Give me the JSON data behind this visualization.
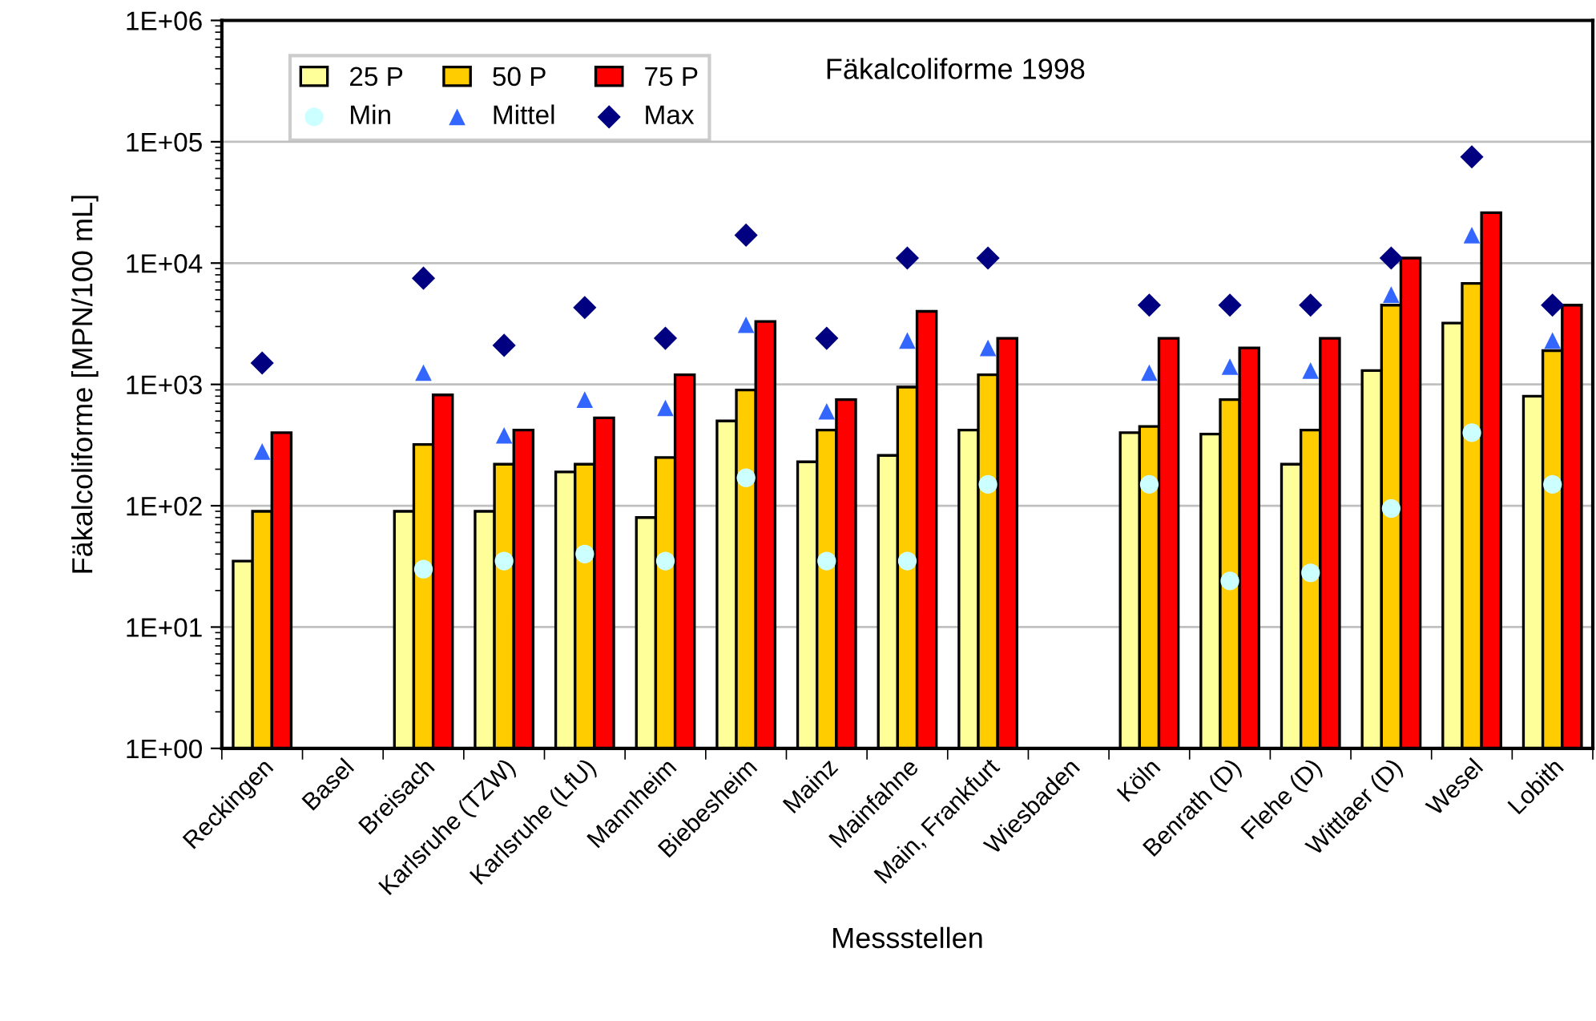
{
  "chart_data": {
    "type": "bar",
    "title": "Fäkalcoliforme 1998",
    "xlabel": "Messstellen",
    "ylabel": "Fäkalcoliforme [MPN/100 mL]",
    "categories": [
      "Reckingen",
      "Basel",
      "Breisach",
      "Karlsruhe (TZW)",
      "Karlsruhe (LfU)",
      "Mannheim",
      "Biebesheim",
      "Mainz",
      "Mainfahne",
      "Main, Frankfurt",
      "Wiesbaden",
      "Köln",
      "Benrath (D)",
      "Flehe (D)",
      "Wittlaer (D)",
      "Wesel",
      "Lobith"
    ],
    "series": [
      {
        "name": "25 P",
        "color": "#ffff99",
        "values": [
          35,
          null,
          90,
          90,
          190,
          80,
          500,
          230,
          260,
          420,
          null,
          400,
          390,
          220,
          1300,
          3200,
          800
        ]
      },
      {
        "name": "50 P",
        "color": "#ffcc00",
        "values": [
          90,
          null,
          320,
          220,
          220,
          250,
          900,
          420,
          950,
          1200,
          null,
          450,
          750,
          420,
          4500,
          6800,
          1900
        ]
      },
      {
        "name": "75 P",
        "color": "#ff0000",
        "values": [
          400,
          null,
          820,
          420,
          530,
          1200,
          3300,
          750,
          4000,
          2400,
          null,
          2400,
          2000,
          2400,
          11000,
          26000,
          4500
        ]
      },
      {
        "name": "Min",
        "type": "scatter",
        "marker": "circle",
        "color": "#ccffff",
        "x": [
          "Reckingen",
          "Basel",
          "Breisach",
          "Karlsruhe (TZW)",
          "Karlsruhe (LfU)",
          "Mannheim",
          "Biebesheim",
          "Mainz",
          "Mainfahne",
          "Main, Frankfurt",
          "Wiesbaden",
          "Köln",
          "Benrath (D)",
          "Flehe (D)",
          "Wittlaer (D)",
          "Wesel",
          "Lobith"
        ],
        "values": [
          null,
          null,
          30,
          35,
          40,
          35,
          170,
          35,
          35,
          150,
          null,
          150,
          24,
          28,
          95,
          400,
          150
        ]
      },
      {
        "name": "Mittel",
        "type": "scatter",
        "marker": "triangle",
        "color": "#3366ff",
        "x": [
          "Reckingen",
          "Basel",
          "Breisach",
          "Karlsruhe (TZW)",
          "Karlsruhe (LfU)",
          "Mannheim",
          "Biebesheim",
          "Mainz",
          "Mainfahne",
          "Main, Frankfurt",
          "Wiesbaden",
          "Köln",
          "Benrath (D)",
          "Flehe (D)",
          "Wittlaer (D)",
          "Wesel",
          "Lobith"
        ],
        "values": [
          280,
          null,
          1250,
          380,
          750,
          640,
          3100,
          600,
          2300,
          2000,
          null,
          1250,
          1400,
          1300,
          5500,
          17000,
          2300
        ]
      },
      {
        "name": "Max",
        "type": "scatter",
        "marker": "diamond",
        "color": "#000080",
        "x": [
          "Reckingen",
          "Basel",
          "Breisach",
          "Karlsruhe (TZW)",
          "Karlsruhe (LfU)",
          "Mannheim",
          "Biebesheim",
          "Mainz",
          "Mainfahne",
          "Main, Frankfurt",
          "Wiesbaden",
          "Köln",
          "Benrath (D)",
          "Flehe (D)",
          "Wittlaer (D)",
          "Wesel",
          "Lobith"
        ],
        "values": [
          1500,
          null,
          7500,
          2100,
          4300,
          2400,
          17000,
          2400,
          11000,
          11000,
          null,
          4500,
          4500,
          4500,
          11000,
          75000,
          4500
        ]
      }
    ],
    "log": "y",
    "ylim": [
      1,
      1000000
    ],
    "yticks": [
      {
        "value": 1,
        "label": "1E+00"
      },
      {
        "value": 10,
        "label": "1E+01"
      },
      {
        "value": 100,
        "label": "1E+02"
      },
      {
        "value": 1000,
        "label": "1E+03"
      },
      {
        "value": 10000,
        "label": "1E+04"
      },
      {
        "value": 100000,
        "label": "1E+05"
      },
      {
        "value": 1000000,
        "label": "1E+06"
      }
    ],
    "grid": "y",
    "legend": "top left"
  }
}
